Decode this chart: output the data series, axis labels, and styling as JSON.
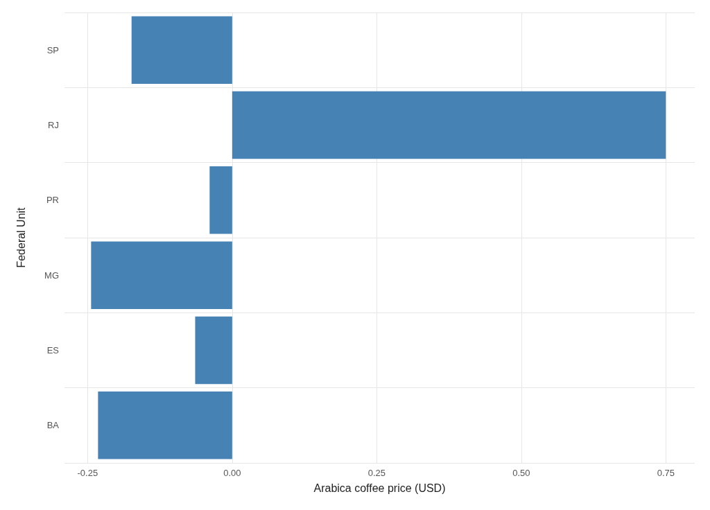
{
  "chart_data": {
    "type": "bar",
    "orientation": "horizontal",
    "xlabel": "Arabica coffee price (USD)",
    "ylabel": "Federal Unit",
    "categories": [
      "SP",
      "RJ",
      "PR",
      "MG",
      "ES",
      "BA"
    ],
    "values": [
      -0.174,
      0.75,
      -0.039,
      -0.244,
      -0.064,
      -0.232
    ],
    "color": "#4682b4",
    "xlim": [
      -0.29,
      0.8
    ],
    "xticks": [
      {
        "value": -0.25,
        "label": "-0.25"
      },
      {
        "value": 0,
        "label": "0.00"
      },
      {
        "value": 0.25,
        "label": "0.25"
      },
      {
        "value": 0.5,
        "label": "0.50"
      },
      {
        "value": 0.75,
        "label": "0.75"
      }
    ],
    "grid": true
  }
}
